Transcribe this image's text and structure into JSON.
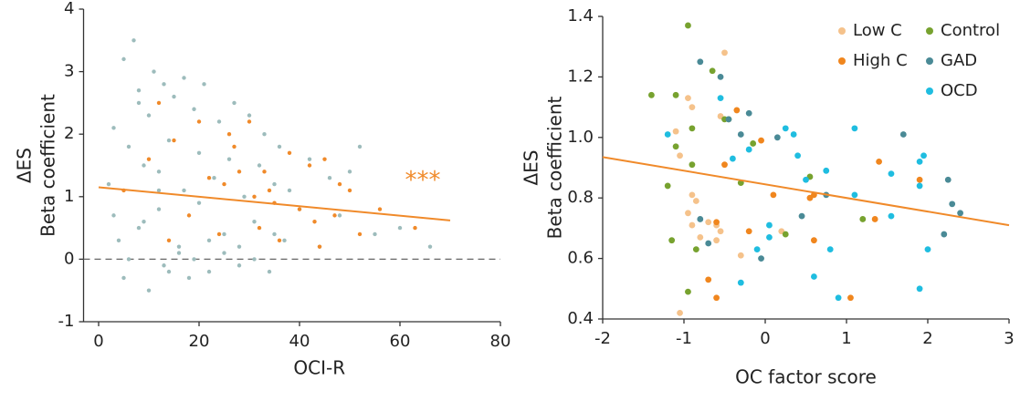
{
  "chart_data": [
    {
      "type": "scatter",
      "xlabel": "OCI-R",
      "ylabel": [
        "ΔES",
        "Beta coefficient"
      ],
      "annotation": "***",
      "xlim": [
        -3,
        80
      ],
      "ylim": [
        -1,
        4
      ],
      "xticks": [
        0,
        20,
        40,
        60,
        80
      ],
      "yticks": [
        -1,
        0,
        1,
        2,
        3,
        4
      ],
      "hline": 0,
      "series": [
        {
          "color": "#9dbcbc",
          "x": [
            2,
            3,
            4,
            5,
            5,
            6,
            7,
            8,
            8,
            9,
            10,
            10,
            11,
            12,
            12,
            13,
            14,
            14,
            15,
            16,
            17,
            17,
            18,
            19,
            20,
            20,
            21,
            22,
            23,
            24,
            25,
            26,
            27,
            28,
            29,
            30,
            31,
            32,
            33,
            34,
            35,
            36,
            37,
            38,
            40,
            42,
            44,
            46,
            48,
            50,
            52,
            55,
            60,
            66,
            6,
            9,
            13,
            16,
            19,
            22,
            25,
            28,
            31,
            35,
            3,
            8,
            12
          ],
          "values": [
            1.2,
            2.1,
            0.3,
            3.2,
            -0.3,
            1.8,
            3.5,
            0.5,
            2.7,
            1.5,
            -0.5,
            2.3,
            3.0,
            0.8,
            1.4,
            2.8,
            -0.2,
            1.9,
            2.6,
            0.2,
            1.1,
            2.9,
            -0.3,
            2.4,
            0.9,
            1.7,
            2.8,
            -0.2,
            1.3,
            2.2,
            0.4,
            1.6,
            2.5,
            -0.1,
            1.0,
            2.3,
            0.6,
            1.5,
            2.0,
            -0.2,
            1.2,
            1.8,
            0.3,
            1.1,
            0.8,
            1.6,
            0.2,
            1.3,
            0.7,
            1.4,
            1.8,
            0.4,
            0.5,
            0.2,
            0.0,
            0.6,
            -0.1,
            0.1,
            0.0,
            0.3,
            0.1,
            0.2,
            0.0,
            0.4,
            0.7,
            2.5,
            1.1
          ]
        },
        {
          "color": "#f08a2a",
          "x": [
            5,
            10,
            12,
            14,
            15,
            18,
            20,
            22,
            24,
            25,
            26,
            28,
            30,
            31,
            32,
            34,
            35,
            36,
            38,
            40,
            42,
            43,
            45,
            47,
            48,
            50,
            52,
            56,
            63,
            44,
            27,
            33
          ],
          "values": [
            1.1,
            1.6,
            2.5,
            0.3,
            1.9,
            0.7,
            2.2,
            1.3,
            0.4,
            1.2,
            2.0,
            1.4,
            2.2,
            1.0,
            0.5,
            1.1,
            0.9,
            0.3,
            1.7,
            0.8,
            1.5,
            0.6,
            1.6,
            0.7,
            1.2,
            1.1,
            0.4,
            0.8,
            0.5,
            0.2,
            1.8,
            1.4
          ]
        }
      ],
      "fit": {
        "color": "#f08a2a",
        "x": [
          0,
          70
        ],
        "values": [
          1.15,
          0.62
        ]
      }
    },
    {
      "type": "scatter",
      "xlabel": "OC factor score",
      "ylabel": [
        "ΔES",
        "Beta coefficient"
      ],
      "xlim": [
        -2,
        3
      ],
      "ylim": [
        0.4,
        1.4
      ],
      "xticks": [
        -2,
        -1,
        0,
        1,
        2,
        3
      ],
      "yticks": [
        0.4,
        0.6,
        0.8,
        {
          "value": 1,
          "label": "1.0"
        },
        1.2,
        1.4
      ],
      "series": [
        {
          "name": "Low C",
          "color": "#f5c28b",
          "x": [
            -0.95,
            -0.9,
            -0.5,
            -1.1,
            -1.05,
            -0.9,
            -0.85,
            -0.9,
            -0.6,
            -0.55,
            -0.6,
            -0.8,
            -0.3,
            -1.05,
            -0.7,
            0.2,
            -0.55,
            -0.95
          ],
          "values": [
            1.13,
            1.1,
            1.28,
            1.02,
            0.94,
            0.81,
            0.79,
            0.71,
            0.71,
            0.69,
            0.66,
            0.67,
            0.61,
            0.42,
            0.72,
            0.69,
            1.07,
            0.75
          ]
        },
        {
          "name": "High C",
          "color": "#f0861e",
          "x": [
            -0.35,
            -0.6,
            -0.7,
            -0.6,
            -0.2,
            0.1,
            -0.05,
            0.55,
            0.6,
            0.6,
            1.4,
            1.35,
            1.9,
            1.05,
            -0.5
          ],
          "values": [
            1.09,
            0.72,
            0.53,
            0.47,
            0.69,
            0.81,
            0.99,
            0.8,
            0.81,
            0.66,
            0.92,
            0.73,
            0.86,
            0.47,
            0.91
          ]
        },
        {
          "name": "Control",
          "color": "#77a22f",
          "x": [
            -0.95,
            -0.65,
            -1.4,
            -1.1,
            -0.5,
            -0.45,
            -0.9,
            -1.1,
            -0.15,
            -0.9,
            -1.2,
            -1.15,
            -0.85,
            -0.95,
            0.55,
            0.25,
            1.2,
            -0.3
          ],
          "values": [
            1.37,
            1.22,
            1.14,
            1.14,
            1.06,
            1.06,
            1.03,
            0.97,
            0.98,
            0.91,
            0.84,
            0.66,
            0.63,
            0.49,
            0.87,
            0.68,
            0.73,
            0.85
          ]
        },
        {
          "name": "GAD",
          "color": "#4a8a96",
          "x": [
            -0.8,
            -0.55,
            -0.45,
            -0.2,
            0.15,
            -0.05,
            -0.8,
            -0.7,
            0.45,
            0.75,
            1.7,
            2.25,
            2.3,
            2.4,
            2.2,
            -0.3
          ],
          "values": [
            1.25,
            1.2,
            1.06,
            1.08,
            1.0,
            0.6,
            0.73,
            0.65,
            0.74,
            0.81,
            1.01,
            0.86,
            0.78,
            0.75,
            0.68,
            1.01
          ]
        },
        {
          "name": "OCD",
          "color": "#1fbde0",
          "x": [
            -0.55,
            -1.2,
            -0.2,
            -0.4,
            0.05,
            0.05,
            0.25,
            0.35,
            0.4,
            0.5,
            0.75,
            0.6,
            0.8,
            0.9,
            1.1,
            1.1,
            1.55,
            1.55,
            1.9,
            1.95,
            1.9,
            2.0,
            1.9,
            -0.3,
            -0.1
          ],
          "values": [
            1.13,
            1.01,
            0.96,
            0.93,
            0.71,
            0.67,
            1.03,
            1.01,
            0.94,
            0.86,
            0.89,
            0.54,
            0.63,
            0.47,
            1.03,
            0.81,
            0.88,
            0.74,
            0.92,
            0.94,
            0.84,
            0.63,
            0.5,
            0.52,
            0.63
          ]
        }
      ],
      "fit": {
        "color": "#f08a2a",
        "x": [
          -2,
          3
        ],
        "values": [
          0.935,
          0.71
        ]
      }
    }
  ]
}
